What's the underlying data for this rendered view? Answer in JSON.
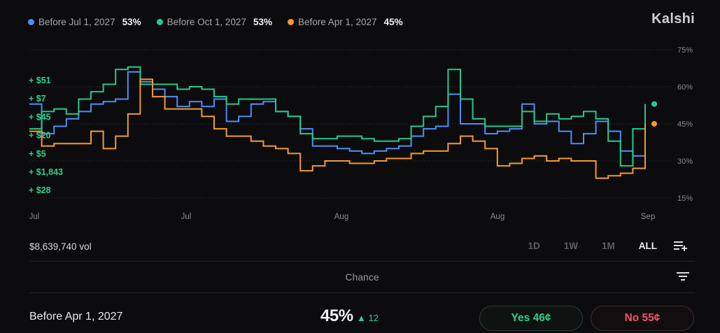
{
  "brand": "Kalshi",
  "legend": [
    {
      "name": "Before Jul 1, 2027",
      "pct": "53%",
      "color": "#4c8ff5"
    },
    {
      "name": "Before Oct 1, 2027",
      "pct": "53%",
      "color": "#27c88a"
    },
    {
      "name": "Before Apr 1, 2027",
      "pct": "45%",
      "color": "#f59a2b"
    }
  ],
  "chart_data": {
    "type": "line",
    "x_tick_labels": [
      "Jul",
      "Jul",
      "Aug",
      "Aug",
      "Sep"
    ],
    "y_tick_labels": [
      "75%",
      "60%",
      "45%",
      "30%",
      "15%"
    ],
    "ylim": [
      15,
      75
    ],
    "grid": true,
    "trade_annotations": [
      "+ $51",
      "+ $7",
      "+ $45",
      "+ $20",
      "+ $5",
      "+ $1,843",
      "+ $28"
    ],
    "x": [
      0,
      2,
      4,
      6,
      8,
      10,
      12,
      14,
      16,
      18,
      20,
      22,
      24,
      26,
      28,
      30,
      32,
      34,
      36,
      38,
      40,
      42,
      44,
      46,
      48,
      50,
      52,
      54,
      56,
      58,
      60,
      62,
      64,
      66,
      68,
      70,
      72,
      74,
      76,
      78,
      80,
      82,
      84,
      86,
      88,
      90,
      92,
      94,
      96,
      98,
      100
    ],
    "series": [
      {
        "name": "Before Jul 1, 2027",
        "color": "#4c8ff5",
        "values": [
          53,
          41,
          44,
          47,
          50,
          53,
          54,
          55,
          66,
          62,
          59,
          56,
          52,
          54,
          52,
          55,
          46,
          48,
          53,
          54,
          50,
          48,
          43,
          36,
          36,
          35,
          34,
          33,
          34,
          35,
          36,
          40,
          43,
          44,
          57,
          45,
          45,
          41,
          42,
          43,
          53,
          45,
          46,
          42,
          37,
          41,
          46,
          42,
          34,
          32,
          53
        ]
      },
      {
        "name": "Before Oct 1, 2027",
        "color": "#27c88a",
        "values": [
          43,
          50,
          51,
          49,
          55,
          58,
          61,
          67,
          68,
          61,
          61,
          61,
          59,
          60,
          59,
          56,
          53,
          55,
          55,
          55,
          50,
          48,
          41,
          39,
          39,
          40,
          40,
          39,
          38,
          38,
          39,
          44,
          48,
          52,
          67,
          55,
          47,
          44,
          44,
          44,
          50,
          46,
          49,
          47,
          48,
          50,
          47,
          38,
          28,
          43,
          53
        ]
      },
      {
        "name": "Before Apr 1, 2027",
        "color": "#f59a2b",
        "values": [
          42,
          36,
          37,
          37,
          37,
          42,
          35,
          40,
          49,
          63,
          56,
          51,
          51,
          51,
          48,
          43,
          40,
          40,
          38,
          36,
          35,
          33,
          26,
          28,
          30,
          30,
          29,
          29,
          30,
          31,
          31,
          33,
          34,
          34,
          37,
          40,
          38,
          35,
          28,
          29,
          31,
          32,
          30,
          31,
          30,
          30,
          23,
          24,
          25,
          27,
          45
        ]
      }
    ]
  },
  "volume": "$8,639,740 vol",
  "ranges": [
    {
      "label": "1D",
      "active": false
    },
    {
      "label": "1W",
      "active": false
    },
    {
      "label": "1M",
      "active": false
    },
    {
      "label": "ALL",
      "active": true
    }
  ],
  "chance_label": "Chance",
  "market": {
    "name": "Before Apr 1, 2027",
    "pct": "45%",
    "delta": "▲ 12",
    "yes_label": "Yes 46¢",
    "no_label": "No 55¢"
  }
}
